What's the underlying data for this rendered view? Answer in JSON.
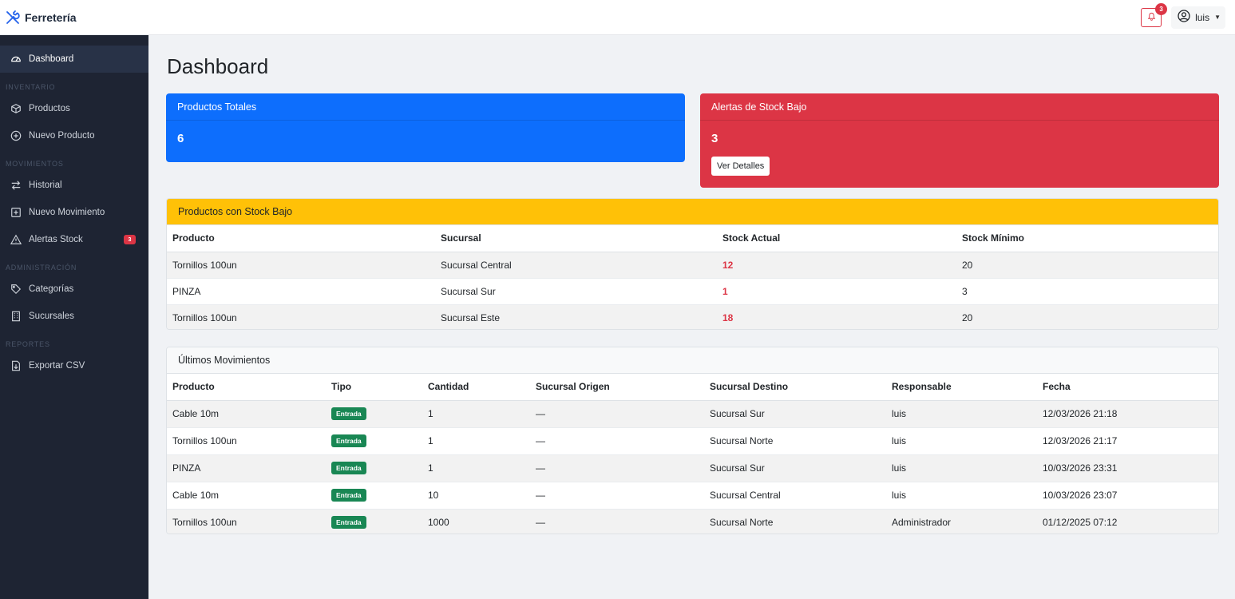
{
  "app": {
    "brand": "Ferretería"
  },
  "topbar": {
    "notification_count": "3",
    "user_name": "luis"
  },
  "sidebar": {
    "items": [
      {
        "label": "Dashboard",
        "icon": "speedometer-icon",
        "active": true
      },
      {
        "label": "Productos",
        "icon": "box-icon"
      },
      {
        "label": "Nuevo Producto",
        "icon": "plus-circle-icon"
      },
      {
        "label": "Historial",
        "icon": "arrows-exchange-icon"
      },
      {
        "label": "Nuevo Movimiento",
        "icon": "plus-square-icon"
      },
      {
        "label": "Alertas Stock",
        "icon": "warning-triangle-icon",
        "badge": "3"
      },
      {
        "label": "Categorías",
        "icon": "tags-icon"
      },
      {
        "label": "Sucursales",
        "icon": "building-icon"
      },
      {
        "label": "Exportar CSV",
        "icon": "file-export-icon"
      }
    ],
    "sections": [
      "Inventario",
      "Movimientos",
      "Administración",
      "Reportes"
    ]
  },
  "main": {
    "title": "Dashboard",
    "cards": {
      "total_products": {
        "label": "Productos Totales",
        "value": "6",
        "color": "#0d6efd"
      },
      "low_stock_alerts": {
        "label": "Alertas de Stock Bajo",
        "value": "3",
        "button": "Ver Detalles",
        "color": "#dc3545"
      }
    },
    "low_stock": {
      "title": "Productos con Stock Bajo",
      "columns": [
        "Producto",
        "Sucursal",
        "Stock Actual",
        "Stock Mínimo"
      ],
      "rows": [
        [
          "Tornillos 100un",
          "Sucursal Central",
          "12",
          "20"
        ],
        [
          "PINZA",
          "Sucursal Sur",
          "1",
          "3"
        ],
        [
          "Tornillos 100un",
          "Sucursal Este",
          "18",
          "20"
        ]
      ]
    },
    "movements": {
      "title": "Últimos Movimientos",
      "columns": [
        "Producto",
        "Tipo",
        "Cantidad",
        "Sucursal Origen",
        "Sucursal Destino",
        "Responsable",
        "Fecha"
      ],
      "rows": [
        [
          "Cable 10m",
          "Entrada",
          "1",
          "—",
          "Sucursal Sur",
          "luis",
          "12/03/2026 21:18"
        ],
        [
          "Tornillos 100un",
          "Entrada",
          "1",
          "—",
          "Sucursal Norte",
          "luis",
          "12/03/2026 21:17"
        ],
        [
          "PINZA",
          "Entrada",
          "1",
          "—",
          "Sucursal Sur",
          "luis",
          "10/03/2026 23:31"
        ],
        [
          "Cable 10m",
          "Entrada",
          "10",
          "—",
          "Sucursal Central",
          "luis",
          "10/03/2026 23:07"
        ],
        [
          "Tornillos 100un",
          "Entrada",
          "1000",
          "—",
          "Sucursal Norte",
          "Administrador",
          "01/12/2025 07:12"
        ]
      ]
    }
  }
}
